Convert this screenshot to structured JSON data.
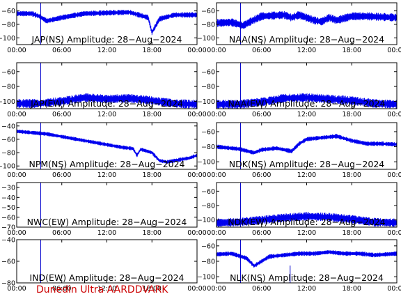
{
  "footer": "Dunedin Ultra AARDDVARK",
  "colors": {
    "signal": "#0000ee",
    "marker": "#0000cc",
    "axis": "#000000",
    "footer": "#cc0000"
  },
  "chart_data": [
    {
      "type": "line",
      "title": "JAP(NS) Amplitude: 28-Aug-2024",
      "x_ticks": [
        "00:00",
        "06:00",
        "12:00",
        "18:00",
        "00:00"
      ],
      "y_ticks": [
        -100,
        -80,
        -60
      ],
      "ylim": [
        -110,
        -48
      ],
      "marker_hour": 3.2,
      "series": [
        {
          "x": [
            0,
            2,
            3,
            4,
            6,
            9,
            12,
            15,
            17.5,
            18,
            19,
            21,
            24
          ],
          "values": [
            -64,
            -64,
            -68,
            -75,
            -70,
            -64,
            -63,
            -62,
            -70,
            -92,
            -72,
            -66,
            -66
          ],
          "noise": 4
        }
      ]
    },
    {
      "type": "line",
      "title": "NAA(NS) Amplitude: 28-Aug-2024",
      "x_ticks": [
        "00:00",
        "06:00",
        "12:00",
        "18:00",
        "00:00"
      ],
      "y_ticks": [
        -100,
        -80,
        -60
      ],
      "ylim": [
        -110,
        -48
      ],
      "marker_hour": 3.2,
      "series": [
        {
          "x": [
            0,
            2,
            3,
            3.5,
            4.5,
            6,
            9,
            10,
            11,
            13,
            14,
            15,
            16,
            18,
            20,
            24
          ],
          "values": [
            -78,
            -77,
            -80,
            -82,
            -76,
            -68,
            -66,
            -70,
            -66,
            -74,
            -76,
            -70,
            -74,
            -68,
            -68,
            -70
          ],
          "noise": 6
        }
      ]
    },
    {
      "type": "line",
      "title": "JAP(EW) Amplitude: 28-Aug-2024",
      "x_ticks": [
        "00:00",
        "06:00",
        "12:00",
        "18:00",
        "00:00"
      ],
      "y_ticks": [
        -100,
        -80,
        -60
      ],
      "ylim": [
        -110,
        -48
      ],
      "marker_hour": 3.2,
      "series": [
        {
          "x": [
            0,
            3,
            6,
            9,
            12,
            15,
            18,
            21,
            24
          ],
          "values": [
            -103,
            -103,
            -100,
            -95,
            -97,
            -96,
            -99,
            -103,
            -104
          ],
          "noise": 6
        }
      ]
    },
    {
      "type": "line",
      "title": "NAA(EW) Amplitude: 28-Aug-2024",
      "x_ticks": [
        "00:00",
        "06:00",
        "12:00",
        "18:00",
        "00:00"
      ],
      "y_ticks": [
        -100,
        -80,
        -60
      ],
      "ylim": [
        -110,
        -48
      ],
      "marker_hour": 3.2,
      "series": [
        {
          "x": [
            0,
            3,
            6,
            9,
            12,
            15,
            18,
            21,
            24
          ],
          "values": [
            -104,
            -104,
            -101,
            -96,
            -95,
            -97,
            -99,
            -103,
            -104
          ],
          "noise": 6
        }
      ]
    },
    {
      "type": "line",
      "title": "NPM(NS) Amplitude: 28-Aug-2024",
      "x_ticks": [
        "00:00",
        "06:00",
        "12:00",
        "18:00",
        "00:00"
      ],
      "y_ticks": [
        -100,
        -80,
        -60,
        -40
      ],
      "ylim": [
        -105,
        -35
      ],
      "marker_hour": 3.2,
      "series": [
        {
          "x": [
            0,
            2,
            4,
            6,
            9,
            12,
            14,
            15.5,
            16,
            16.5,
            18,
            19,
            20,
            22,
            23,
            24
          ],
          "values": [
            -48,
            -50,
            -52,
            -56,
            -62,
            -68,
            -72,
            -74,
            -84,
            -75,
            -80,
            -92,
            -94,
            -90,
            -88,
            -84
          ],
          "noise": 3
        }
      ]
    },
    {
      "type": "line",
      "title": "NDK(NS) Amplitude: 28-Aug-2024",
      "x_ticks": [
        "00:00",
        "06:00",
        "12:00",
        "18:00",
        "00:00"
      ],
      "y_ticks": [
        -100,
        -80,
        -60
      ],
      "ylim": [
        -110,
        -48
      ],
      "marker_hour": 3.2,
      "series": [
        {
          "x": [
            0,
            3,
            5,
            6,
            8,
            10,
            11,
            12,
            14,
            16,
            18,
            20,
            22,
            24
          ],
          "values": [
            -80,
            -83,
            -88,
            -84,
            -82,
            -86,
            -76,
            -70,
            -68,
            -66,
            -72,
            -76,
            -76,
            -77
          ],
          "noise": 3
        }
      ]
    },
    {
      "type": "line",
      "title": "NWC(EW) Amplitude: 28-Aug-2024",
      "x_ticks": [
        "00:00",
        "06:00",
        "12:00",
        "18:00",
        "00:00"
      ],
      "y_ticks": [
        -70,
        -60,
        -50,
        -40,
        -30
      ],
      "ylim": [
        -70,
        -25
      ],
      "marker_hour": 3.2,
      "series": []
    },
    {
      "type": "line",
      "title": "NDK(EW) Amplitude: 28-Aug-2024",
      "x_ticks": [
        "00:00",
        "06:00",
        "12:00",
        "18:00",
        "00:00"
      ],
      "y_ticks": [
        -100,
        -80,
        -60
      ],
      "ylim": [
        -110,
        -48
      ],
      "marker_hour": 3.2,
      "series": [
        {
          "x": [
            0,
            3,
            6,
            9,
            12,
            15,
            18,
            21,
            24
          ],
          "values": [
            -104,
            -103,
            -100,
            -97,
            -95,
            -96,
            -99,
            -103,
            -104
          ],
          "noise": 6
        }
      ]
    },
    {
      "type": "line",
      "title": "IND(EW) Amplitude: 28-Aug-2024",
      "x_ticks": [
        "00:00",
        "06:00",
        "12:00",
        "18:00",
        "00:00"
      ],
      "y_ticks": [
        -80,
        -60,
        -40
      ],
      "ylim": [
        -80,
        -40
      ],
      "marker_hour": 3.2,
      "series": []
    },
    {
      "type": "line",
      "title": "NLK(NS) Amplitude: 28-Aug-2024",
      "x_ticks": [
        "00:00",
        "06:00",
        "12:00",
        "18:00",
        "00:00"
      ],
      "y_ticks": [
        -100,
        -80,
        -60
      ],
      "ylim": [
        -108,
        -52
      ],
      "marker_hour": 3.2,
      "extra_marker_hour": 9.8,
      "series": [
        {
          "x": [
            0,
            2,
            4,
            5,
            6,
            7,
            9,
            11,
            13,
            15,
            17,
            19,
            21,
            24
          ],
          "values": [
            -71,
            -70,
            -76,
            -86,
            -80,
            -74,
            -72,
            -70,
            -70,
            -68,
            -70,
            -70,
            -72,
            -70
          ],
          "noise": 3
        }
      ]
    }
  ]
}
